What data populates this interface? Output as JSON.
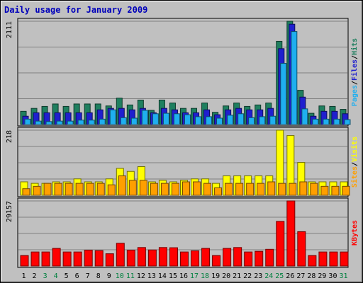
{
  "chart_data": {
    "type": "bar",
    "title": "Daily usage for January 2009",
    "categories": [
      "1",
      "2",
      "3",
      "4",
      "5",
      "6",
      "7",
      "8",
      "9",
      "10",
      "11",
      "12",
      "13",
      "14",
      "15",
      "16",
      "17",
      "18",
      "19",
      "20",
      "21",
      "22",
      "23",
      "24",
      "25",
      "26",
      "27",
      "28",
      "29",
      "30",
      "31"
    ],
    "weekend_days": [
      "3",
      "4",
      "10",
      "11",
      "17",
      "18",
      "24",
      "25",
      "31"
    ],
    "panels": [
      {
        "name": "hits-files-pages",
        "max_label": "2111",
        "ymax": 2111,
        "axis_label": [
          "Pages",
          "/",
          "Files",
          "/",
          "Hits"
        ],
        "series": [
          {
            "name": "Hits",
            "color": "#1f7f5f",
            "values": [
              270,
              330,
              370,
              420,
              370,
              420,
              420,
              420,
              380,
              540,
              400,
              500,
              290,
              500,
              440,
              330,
              330,
              440,
              250,
              380,
              440,
              370,
              400,
              440,
              1700,
              2111,
              700,
              230,
              380,
              370,
              310
            ]
          },
          {
            "name": "Files",
            "color": "#1f1fcf",
            "values": [
              170,
              240,
              240,
              240,
              240,
              240,
              240,
              300,
              330,
              330,
              300,
              330,
              240,
              330,
              300,
              240,
              240,
              300,
              200,
              300,
              330,
              300,
              300,
              330,
              1550,
              2050,
              560,
              170,
              270,
              270,
              220
            ]
          },
          {
            "name": "Pages",
            "color": "#1fafef",
            "values": [
              110,
              70,
              60,
              70,
              70,
              90,
              90,
              110,
              300,
              140,
              130,
              290,
              220,
              230,
              220,
              200,
              160,
              160,
              130,
              190,
              220,
              140,
              160,
              170,
              1250,
              1900,
              320,
              110,
              110,
              110,
              100
            ]
          }
        ]
      },
      {
        "name": "visits-sites",
        "max_label": "218",
        "ymax": 218,
        "axis_label": [
          "Sites",
          "/",
          "Visits"
        ],
        "series": [
          {
            "name": "Visits",
            "color": "#ffff00",
            "values": [
              45,
              40,
              40,
              45,
              45,
              55,
              45,
              45,
              55,
              90,
              80,
              96,
              45,
              50,
              45,
              50,
              55,
              55,
              40,
              65,
              65,
              65,
              65,
              65,
              218,
              200,
              110,
              45,
              45,
              45,
              45
            ]
          },
          {
            "name": "Sites",
            "color": "#ff9f00",
            "values": [
              22,
              30,
              40,
              40,
              40,
              40,
              40,
              40,
              35,
              65,
              50,
              50,
              40,
              40,
              40,
              45,
              45,
              40,
              25,
              40,
              40,
              40,
              40,
              45,
              40,
              40,
              45,
              40,
              30,
              30,
              30
            ]
          }
        ]
      },
      {
        "name": "kbytes",
        "max_label": "29157",
        "ymax": 29157,
        "axis_label": [
          "KBytes"
        ],
        "series": [
          {
            "name": "KBytes",
            "color": "#ff0000",
            "values": [
              4700,
              6300,
              6300,
              7900,
              6300,
              6300,
              7100,
              6900,
              5500,
              10200,
              7100,
              8300,
              7200,
              8300,
              8200,
              6300,
              6800,
              7900,
              4700,
              7900,
              8300,
              6300,
              6600,
              7500,
              20000,
              29157,
              15400,
              4700,
              6300,
              6300,
              6300
            ]
          }
        ]
      }
    ]
  }
}
